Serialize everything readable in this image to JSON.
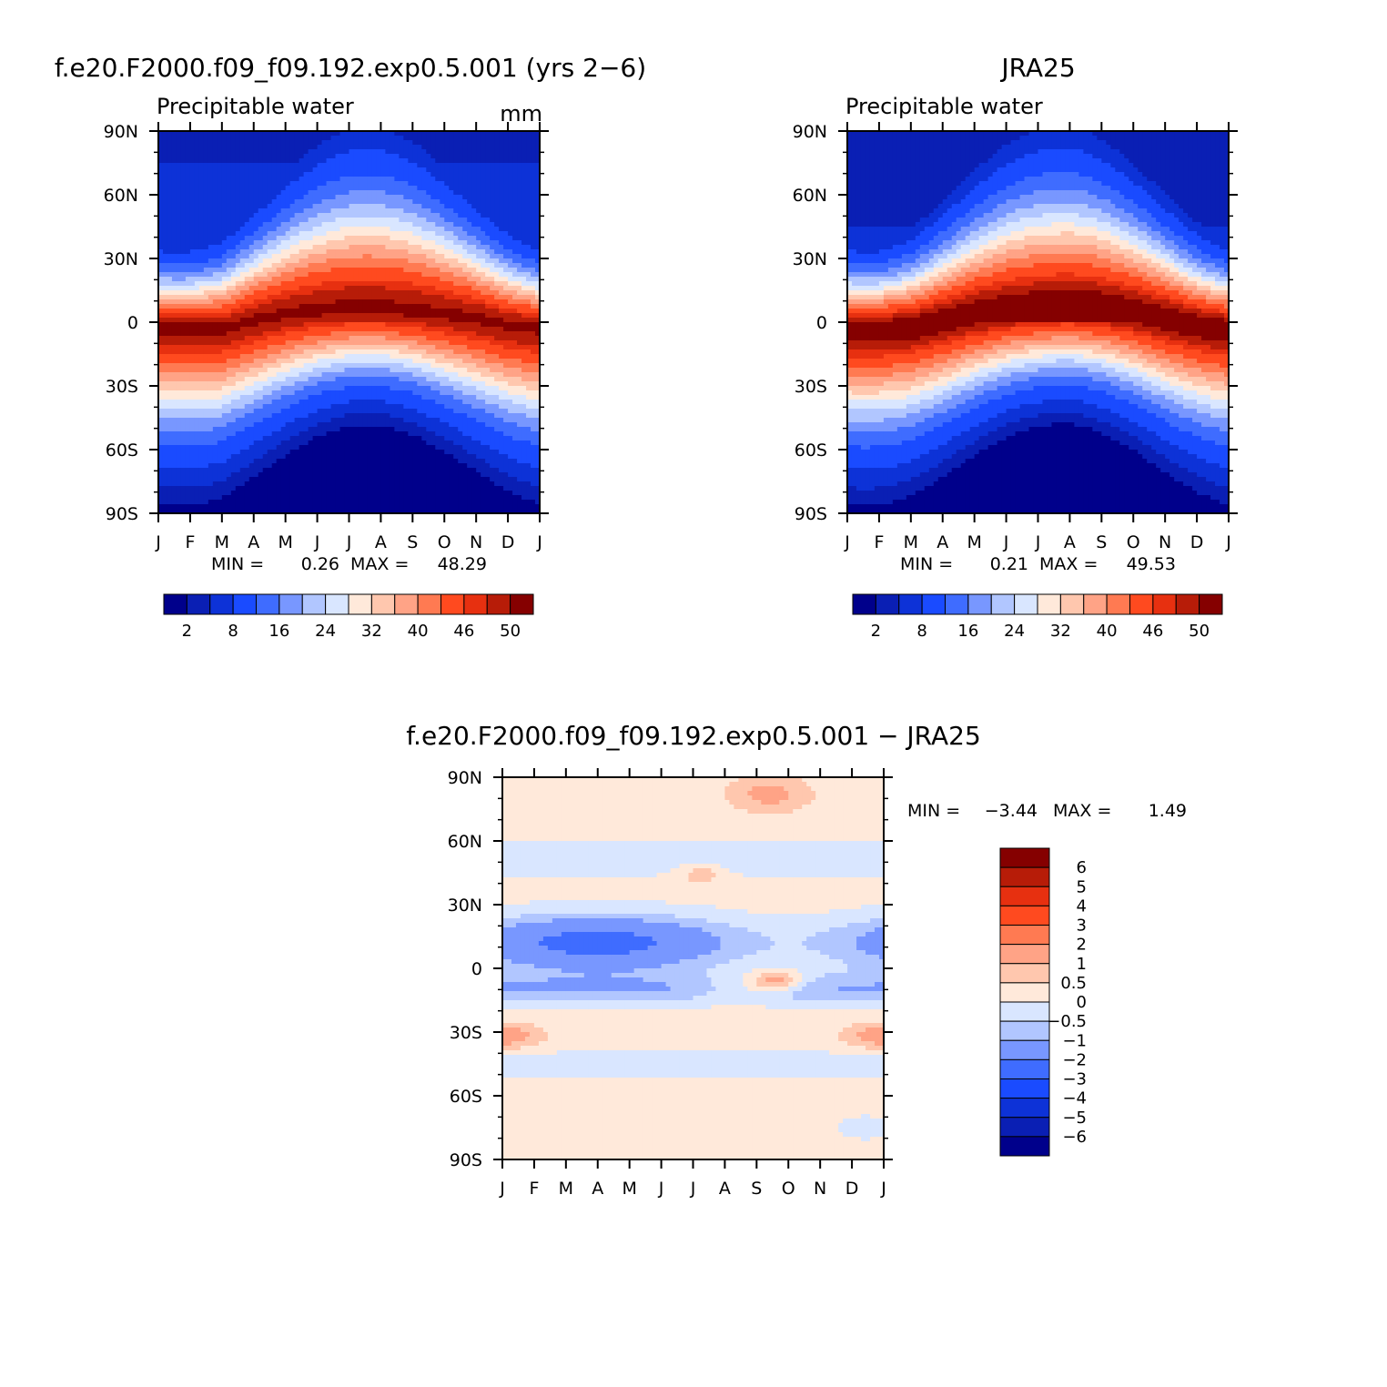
{
  "colors": {
    "absolute_scale": [
      "#00008b",
      "#0a1fb4",
      "#0d32d7",
      "#1a4bff",
      "#3f6cff",
      "#7897ff",
      "#b1c6ff",
      "#d9e6ff",
      "#ffe9da",
      "#ffc7ae",
      "#ffa386",
      "#ff7a52",
      "#ff4a1f",
      "#e73010",
      "#b71c08",
      "#850000"
    ],
    "difference_scale": [
      "#00008b",
      "#0a1fb4",
      "#0d32d7",
      "#1a4bff",
      "#3f6cff",
      "#7897ff",
      "#b1c6ff",
      "#d9e6ff",
      "#ffe9da",
      "#ffc7ae",
      "#ffa386",
      "#ff7a52",
      "#ff4a1f",
      "#e73010",
      "#b71c08",
      "#850000"
    ]
  },
  "chart_data": [
    {
      "type": "heatmap",
      "title": "f.e20.F2000.f09_f09.192.exp0.5.001 (yrs 2−6)",
      "subtitle": "Precipitable water",
      "units": "mm",
      "x_ticks": [
        "J",
        "F",
        "M",
        "A",
        "M",
        "J",
        "J",
        "A",
        "S",
        "O",
        "N",
        "D",
        "J"
      ],
      "y_ticks": [
        "90N",
        "60N",
        "30N",
        "0",
        "30S",
        "60S",
        "90S"
      ],
      "stats": {
        "min_label": "MIN =",
        "min": "0.26",
        "max_label": "MAX =",
        "max": "48.29"
      },
      "colorbar_labels": [
        "2",
        "8",
        "16",
        "24",
        "32",
        "40",
        "46",
        "50"
      ],
      "itcz_lat": [
        -3,
        -3,
        -3,
        1,
        4,
        6,
        7,
        7,
        6,
        4,
        2,
        -1,
        -3
      ],
      "peak_value": 48.3,
      "north_pole_value": 3,
      "south_pole_value": 1
    },
    {
      "type": "heatmap",
      "title": "JRA25",
      "subtitle": "Precipitable water",
      "x_ticks": [
        "J",
        "F",
        "M",
        "A",
        "M",
        "J",
        "J",
        "A",
        "S",
        "O",
        "N",
        "D",
        "J"
      ],
      "y_ticks": [
        "90N",
        "60N",
        "30N",
        "0",
        "30S",
        "60S",
        "90S"
      ],
      "stats": {
        "min_label": "MIN =",
        "min": "0.21",
        "max_label": "MAX =",
        "max": "49.53"
      },
      "colorbar_labels": [
        "2",
        "8",
        "16",
        "24",
        "32",
        "40",
        "46",
        "50"
      ],
      "itcz_lat": [
        -3,
        -3,
        -2,
        1,
        4,
        6,
        7,
        8,
        7,
        5,
        2,
        -1,
        -3
      ],
      "peak_value": 49.5,
      "north_pole_value": 2,
      "south_pole_value": 1
    },
    {
      "type": "heatmap",
      "title": "f.e20.F2000.f09_f09.192.exp0.5.001 − JRA25",
      "x_ticks": [
        "J",
        "F",
        "M",
        "A",
        "M",
        "J",
        "J",
        "A",
        "S",
        "O",
        "N",
        "D",
        "J"
      ],
      "y_ticks": [
        "90N",
        "60N",
        "30N",
        "0",
        "30S",
        "60S",
        "90S"
      ],
      "stats": {
        "min_label": "MIN =",
        "min": "−3.44",
        "max_label": "MAX =",
        "max": "1.49"
      },
      "colorbar_labels": [
        "6",
        "5",
        "4",
        "3",
        "2",
        "1",
        "0.5",
        "0",
        "−0.5",
        "−1",
        "−2",
        "−3",
        "−4",
        "−5",
        "−6"
      ],
      "difference_levels": [
        -6,
        -5,
        -4,
        -3,
        -2,
        -1,
        -0.5,
        0,
        0.5,
        1,
        2,
        3,
        4,
        5,
        6
      ],
      "value_range": [
        -3.44,
        1.49
      ]
    }
  ]
}
